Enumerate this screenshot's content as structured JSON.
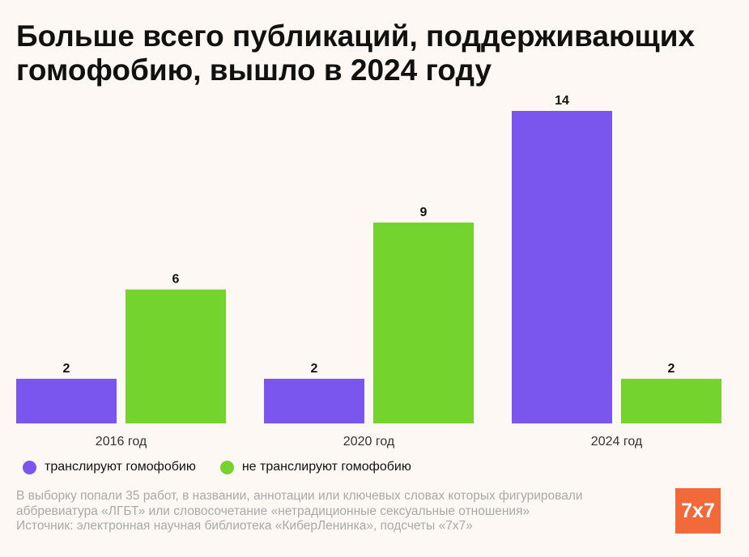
{
  "title": "Больше всего публикаций, поддерживающих гомофобию, вышло в 2024 году",
  "colors": {
    "series1": "#7a55ee",
    "series2": "#74d32d",
    "background": "#fdf8f3",
    "logo": "#f26a3a"
  },
  "chart_data": {
    "type": "bar",
    "title": "Больше всего публикаций, поддерживающих гомофобию, вышло в 2024 году",
    "categories": [
      "2016 год",
      "2020 год",
      "2024 год"
    ],
    "series": [
      {
        "name": "транслируют гомофобию",
        "values": [
          2,
          2,
          14
        ]
      },
      {
        "name": "не транслируют гомофобию",
        "values": [
          6,
          9,
          2
        ]
      }
    ],
    "ylim": [
      0,
      14
    ],
    "xlabel": "",
    "ylabel": "",
    "grid": false,
    "legend": "bottom-left"
  },
  "legend": {
    "item1": "транслируют гомофобию",
    "item2": "не транслируют гомофобию"
  },
  "footnote": {
    "line1": "В выборку попали 35 работ, в названии, аннотации или ключевых словах которых фигурировали",
    "line2": "аббревиатура «ЛГБТ» или словосочетание «нетрадиционные сексуальные отношения»",
    "line3": "Источник: электронная научная библиотека «КиберЛенинка», подсчеты «7x7»"
  },
  "logo": {
    "text": "7x7"
  }
}
